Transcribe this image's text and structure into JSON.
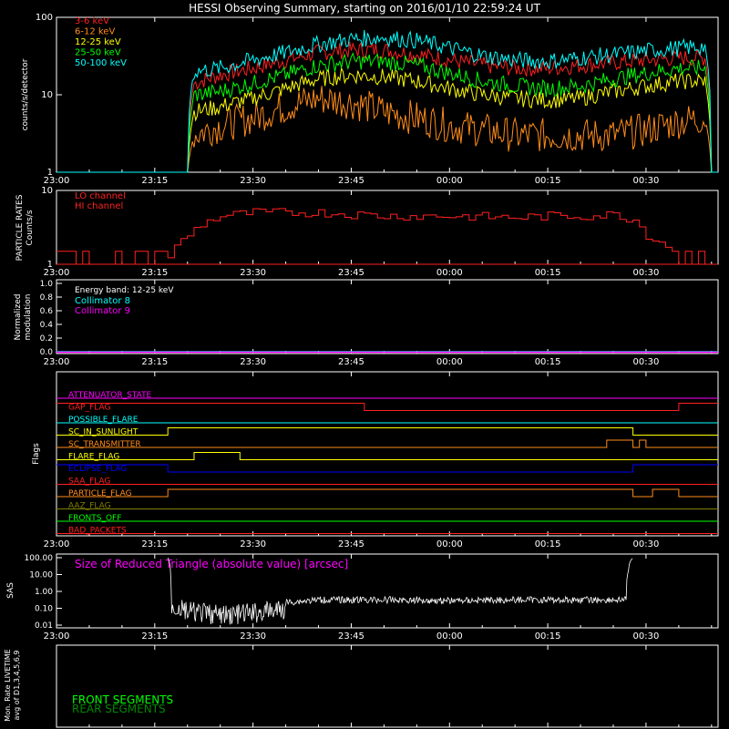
{
  "title": "HESSI Observing Summary, starting on 2016/01/10 22:59:24 UT",
  "time_axis": {
    "ticks": [
      "23:00",
      "23:15",
      "23:30",
      "23:45",
      "00:00",
      "00:15",
      "00:30"
    ],
    "start": "23:00",
    "end": "00:41"
  },
  "colors": {
    "background": "#000000",
    "axis": "#ffffff",
    "band_3_6": "#ff2020",
    "band_6_12": "#ff8c1a",
    "band_12_25": "#ffff00",
    "band_25_50": "#00ff00",
    "band_50_100": "#00ffff",
    "particle": "#ff2020",
    "collimator_8": "#00ffff",
    "collimator_9": "#ff00ff",
    "sas_title": "#ff00ff",
    "sas_line": "#ffffff",
    "front_segments": "#00ff00",
    "rear_segments": "#008800"
  },
  "chart_data": [
    {
      "type": "line",
      "panel": "count_rates",
      "title": "HESSI Observing Summary, starting on 2016/01/10 22:59:24 UT",
      "ylabel": "counts/s/detector",
      "yscale": "log",
      "ylim": [
        1,
        100
      ],
      "yticks": [
        "1",
        "10",
        "100"
      ],
      "x_units": "minutes after 23:00",
      "xlim": [
        0,
        101
      ],
      "x": [
        0,
        20,
        21,
        25,
        30,
        35,
        40,
        45,
        50,
        55,
        60,
        65,
        70,
        75,
        80,
        85,
        90,
        95,
        99,
        100,
        101
      ],
      "series": [
        {
          "name": "3-6 keV",
          "color_key": "band_3_6",
          "values": [
            1,
            1,
            14,
            18,
            22,
            28,
            35,
            38,
            38,
            33,
            28,
            24,
            22,
            22,
            24,
            26,
            28,
            30,
            30,
            1,
            1
          ]
        },
        {
          "name": "6-12 keV",
          "color_key": "band_6_12",
          "values": [
            1,
            1,
            3,
            4,
            5,
            7,
            9,
            8,
            6,
            5,
            4,
            3.5,
            3,
            3,
            3,
            3,
            3.5,
            4.5,
            5,
            1,
            1
          ]
        },
        {
          "name": "12-25 keV",
          "color_key": "band_12_25",
          "values": [
            1,
            1,
            6,
            7,
            9,
            12,
            16,
            18,
            17,
            15,
            12,
            10,
            9,
            8.5,
            9,
            11,
            13,
            15,
            15,
            1,
            1
          ]
        },
        {
          "name": "25-50 keV",
          "color_key": "band_25_50",
          "values": [
            1,
            1,
            10,
            11,
            14,
            18,
            24,
            27,
            27,
            24,
            19,
            15,
            13,
            12,
            13,
            16,
            19,
            22,
            22,
            1,
            1
          ]
        },
        {
          "name": "50-100 keV",
          "color_key": "band_50_100",
          "values": [
            1,
            1,
            20,
            22,
            28,
            35,
            45,
            52,
            55,
            50,
            40,
            32,
            28,
            27,
            30,
            33,
            37,
            40,
            42,
            1,
            1
          ]
        }
      ]
    },
    {
      "type": "line",
      "panel": "particle_rates",
      "ylabel": "PARTICLE RATES Counts/s",
      "yscale": "log",
      "ylim": [
        1,
        10
      ],
      "yticks": [
        "1",
        "10"
      ],
      "x_units": "minutes after 23:00",
      "x": [
        0,
        5,
        10,
        14,
        17,
        20,
        22,
        25,
        30,
        35,
        40,
        50,
        60,
        70,
        75,
        80,
        85,
        88,
        90,
        92,
        95,
        100,
        101
      ],
      "series": [
        {
          "name": "LO channel",
          "color_key": "particle",
          "values": [
            1.3,
            1.3,
            1.3,
            1.3,
            1.3,
            2.5,
            3.5,
            4.5,
            5,
            5,
            5,
            4.5,
            4.5,
            4.3,
            4.5,
            4.5,
            4.7,
            4,
            2.5,
            2,
            1.5,
            1.3,
            1.3
          ]
        },
        {
          "name": "HI channel",
          "color_key": "particle",
          "values": [
            1,
            1,
            1,
            1,
            1,
            1,
            1,
            1,
            1,
            1,
            1,
            1,
            1,
            1,
            1,
            1,
            1,
            1,
            1,
            1,
            1,
            1,
            1
          ]
        }
      ]
    },
    {
      "type": "line",
      "panel": "modulation",
      "ylabel": "Normalized modulation",
      "ylim": [
        0,
        1
      ],
      "yticks": [
        "0.0",
        "0.2",
        "0.4",
        "0.6",
        "0.8",
        "1.0"
      ],
      "annotation": "Energy band: 12-25 keV",
      "x_units": "minutes after 23:00",
      "x": [
        0,
        101
      ],
      "series": [
        {
          "name": "Collimator 8",
          "color_key": "collimator_8",
          "values": [
            0,
            0
          ]
        },
        {
          "name": "Collimator 9",
          "color_key": "collimator_9",
          "values": [
            0,
            0
          ]
        }
      ]
    },
    {
      "type": "line",
      "panel": "flags",
      "ylabel": "Flags",
      "x_units": "minutes after 23:00",
      "flags": [
        {
          "name": "ATTENUATOR_STATE",
          "color": "#ff00ff",
          "steps": [
            [
              0,
              0
            ],
            [
              101,
              0
            ]
          ]
        },
        {
          "name": "GAP_FLAG",
          "color": "#ff2020",
          "steps": [
            [
              0,
              1
            ],
            [
              47,
              1
            ],
            [
              47,
              0
            ],
            [
              95,
              0
            ],
            [
              95,
              1
            ],
            [
              101,
              1
            ]
          ]
        },
        {
          "name": "POSSIBLE_FLARE",
          "color": "#00ffff",
          "steps": [
            [
              0,
              0
            ],
            [
              101,
              0
            ]
          ]
        },
        {
          "name": "SC_IN_SUNLIGHT",
          "color": "#ffff00",
          "steps": [
            [
              0,
              0
            ],
            [
              17,
              0
            ],
            [
              17,
              1
            ],
            [
              88,
              1
            ],
            [
              88,
              0
            ],
            [
              101,
              0
            ]
          ]
        },
        {
          "name": "SC_TRANSMITTER",
          "color": "#ff8c1a",
          "steps": [
            [
              0,
              0
            ],
            [
              84,
              0
            ],
            [
              84,
              1
            ],
            [
              88,
              1
            ],
            [
              88,
              0
            ],
            [
              89,
              0
            ],
            [
              89,
              1
            ],
            [
              90,
              1
            ],
            [
              90,
              0
            ],
            [
              101,
              0
            ]
          ]
        },
        {
          "name": "FLARE_FLAG",
          "color": "#ffff00",
          "steps": [
            [
              0,
              0
            ],
            [
              21,
              0
            ],
            [
              21,
              1
            ],
            [
              28,
              1
            ],
            [
              28,
              0
            ],
            [
              101,
              0
            ]
          ]
        },
        {
          "name": "ECLIPSE_FLAG",
          "color": "#0000ff",
          "steps": [
            [
              0,
              1
            ],
            [
              17,
              1
            ],
            [
              17,
              0
            ],
            [
              88,
              0
            ],
            [
              88,
              1
            ],
            [
              101,
              1
            ]
          ]
        },
        {
          "name": "SAA_FLAG",
          "color": "#ff2020",
          "steps": [
            [
              0,
              0
            ],
            [
              101,
              0
            ]
          ]
        },
        {
          "name": "PARTICLE_FLAG",
          "color": "#ff8c1a",
          "steps": [
            [
              0,
              0
            ],
            [
              17,
              0
            ],
            [
              17,
              1
            ],
            [
              88,
              1
            ],
            [
              88,
              0
            ],
            [
              91,
              0
            ],
            [
              91,
              1
            ],
            [
              95,
              1
            ],
            [
              95,
              0
            ],
            [
              101,
              0
            ]
          ]
        },
        {
          "name": "AAZ_FLAG",
          "color": "#808000",
          "steps": [
            [
              0,
              0
            ],
            [
              101,
              0
            ]
          ]
        },
        {
          "name": "FRONTS_OFF",
          "color": "#00ff00",
          "steps": [
            [
              0,
              0
            ],
            [
              101,
              0
            ]
          ]
        },
        {
          "name": "BAD_PACKETS",
          "color": "#ff2020",
          "steps": [
            [
              0,
              0
            ],
            [
              101,
              0
            ]
          ]
        }
      ]
    },
    {
      "type": "line",
      "panel": "sas",
      "title": "Size of Reduced Triangle (absolute value) [arcsec]",
      "ylabel": "SAS",
      "yscale": "log",
      "ylim": [
        0.01,
        100
      ],
      "yticks": [
        "0.01",
        "0.10",
        "1.00",
        "10.00",
        "100.00"
      ],
      "x_units": "minutes after 23:00",
      "x": [
        17,
        17.5,
        20,
        25,
        30,
        35,
        40,
        50,
        60,
        70,
        80,
        87,
        88
      ],
      "series": [
        {
          "name": "Size of Reduced Triangle",
          "color_key": "sas_line",
          "values": [
            100,
            0.5,
            0.25,
            0.15,
            0.2,
            0.35,
            0.5,
            0.5,
            0.45,
            0.5,
            0.5,
            0.5,
            100
          ]
        }
      ]
    },
    {
      "type": "line",
      "panel": "livetime",
      "ylabel": "Mon. Rate LIVETIME avg of D1,3,4,5,6,9",
      "x_units": "minutes after 23:00",
      "x": [],
      "series": [
        {
          "name": "FRONT SEGMENTS",
          "color_key": "front_segments",
          "values": []
        },
        {
          "name": "REAR SEGMENTS",
          "color_key": "rear_segments",
          "values": []
        }
      ]
    }
  ]
}
